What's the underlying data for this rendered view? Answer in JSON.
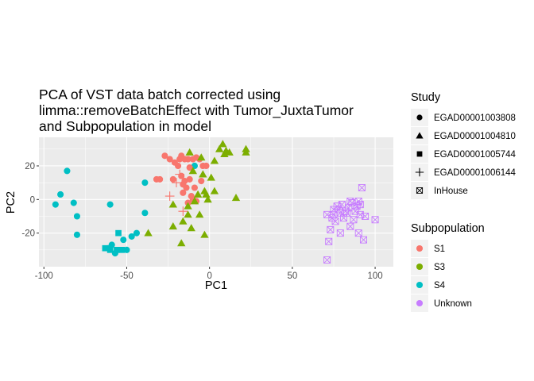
{
  "chart_data": {
    "type": "scatter",
    "title_lines": [
      "PCA of VST data batch corrected using",
      "limma::removeBatchEffect with Tumor_JuxtaTumor",
      "and Subpopulation in model"
    ],
    "xlabel": "PC1",
    "ylabel": "PC2",
    "xlim": [
      -103,
      111
    ],
    "ylim": [
      -40,
      37
    ],
    "xticks": [
      -100,
      -50,
      0,
      50,
      100
    ],
    "xtick_labels": [
      "-100",
      "-50",
      "0",
      "50",
      "100"
    ],
    "yticks": [
      -20,
      0,
      20
    ],
    "ytick_labels": [
      "-20",
      "0",
      "20"
    ],
    "grid": true,
    "background": "#ebebeb",
    "legend_placement": "right",
    "legends": [
      {
        "title": "Study",
        "items": [
          {
            "label": "EGAD00001003808",
            "shape": "circle"
          },
          {
            "label": "EGAD00001004810",
            "shape": "triangle"
          },
          {
            "label": "EGAD00001005744",
            "shape": "square"
          },
          {
            "label": "EGAD00001006144",
            "shape": "plus"
          },
          {
            "label": "InHouse",
            "shape": "boxx"
          }
        ]
      },
      {
        "title": "Subpopulation",
        "items": [
          {
            "label": "S1",
            "color": "#F8766D"
          },
          {
            "label": "S3",
            "color": "#7CAE00"
          },
          {
            "label": "S4",
            "color": "#00BFC4"
          },
          {
            "label": "Unknown",
            "color": "#C77CFF"
          }
        ]
      }
    ],
    "series": [
      {
        "subpopulation": "S4",
        "study": "EGAD00001003808",
        "shape": "circle",
        "color": "#00BFC4",
        "points": [
          [
            -93,
            -3
          ],
          [
            -90,
            3
          ],
          [
            -86,
            17
          ],
          [
            -82,
            -2
          ],
          [
            -80,
            -10
          ],
          [
            -80,
            -21
          ],
          [
            -60,
            -3
          ],
          [
            -59,
            -27
          ],
          [
            -57,
            -32
          ],
          [
            -52,
            -24
          ],
          [
            -50,
            -30
          ],
          [
            -47,
            -22
          ],
          [
            -44,
            -20
          ],
          [
            -39,
            10
          ],
          [
            -39,
            -8
          ],
          [
            -9,
            20
          ]
        ]
      },
      {
        "subpopulation": "S4",
        "study": "EGAD00001005744",
        "shape": "square",
        "color": "#00BFC4",
        "points": [
          [
            -63,
            -29
          ],
          [
            -60,
            -29
          ],
          [
            -60,
            -30
          ],
          [
            -56,
            -30
          ],
          [
            -55,
            -20
          ],
          [
            -53,
            -30
          ]
        ]
      },
      {
        "subpopulation": "S1",
        "study": "EGAD00001003808",
        "shape": "circle",
        "color": "#F8766D",
        "points": [
          [
            -32,
            12
          ],
          [
            -30,
            12
          ],
          [
            -27,
            26
          ],
          [
            -24,
            24
          ],
          [
            -22,
            12
          ],
          [
            -21,
            22
          ],
          [
            -19,
            20
          ],
          [
            -18,
            24
          ],
          [
            -17,
            26
          ],
          [
            -17,
            14
          ],
          [
            -16,
            9
          ],
          [
            -16,
            4
          ],
          [
            -15,
            24
          ],
          [
            -15,
            11
          ],
          [
            -14,
            7
          ],
          [
            -13,
            24
          ],
          [
            -13,
            -2
          ],
          [
            -12,
            19
          ],
          [
            -12,
            12
          ],
          [
            -11,
            2
          ],
          [
            -10,
            24
          ],
          [
            -10,
            0
          ],
          [
            -9,
            7
          ],
          [
            -8,
            25
          ],
          [
            -8,
            -1
          ],
          [
            -6,
            24
          ],
          [
            -5,
            11
          ],
          [
            -4,
            20
          ],
          [
            -2,
            20
          ]
        ]
      },
      {
        "subpopulation": "S1",
        "study": "EGAD00001006144",
        "shape": "plus",
        "color": "#F8766D",
        "points": [
          [
            -24,
            2
          ],
          [
            -20,
            10
          ],
          [
            -18,
            15
          ],
          [
            -16,
            -7
          ]
        ]
      },
      {
        "subpopulation": "S3",
        "study": "EGAD00001004810",
        "shape": "triangle",
        "color": "#7CAE00",
        "points": [
          [
            -37,
            -20
          ],
          [
            -22,
            -16
          ],
          [
            -22,
            -3
          ],
          [
            -17,
            -26
          ],
          [
            -16,
            -13
          ],
          [
            -13,
            -9
          ],
          [
            -13,
            -4
          ],
          [
            -12,
            28
          ],
          [
            -11,
            -17
          ],
          [
            -10,
            17
          ],
          [
            -9,
            -1
          ],
          [
            -7,
            3
          ],
          [
            -6,
            -9
          ],
          [
            -5,
            25
          ],
          [
            -4,
            15
          ],
          [
            -3,
            5
          ],
          [
            -3,
            -21
          ],
          [
            -2,
            3
          ],
          [
            -1,
            0
          ],
          [
            1,
            13
          ],
          [
            3,
            23
          ],
          [
            3,
            5
          ],
          [
            6,
            30
          ],
          [
            8,
            33
          ],
          [
            9,
            27
          ],
          [
            10,
            29
          ],
          [
            12,
            28
          ],
          [
            16,
            1
          ],
          [
            22,
            30
          ],
          [
            22,
            28
          ]
        ]
      },
      {
        "subpopulation": "Unknown",
        "study": "InHouse",
        "shape": "boxx",
        "color": "#C77CFF",
        "points": [
          [
            71,
            -36
          ],
          [
            71,
            -9
          ],
          [
            72,
            -25
          ],
          [
            73,
            -18
          ],
          [
            74,
            -11
          ],
          [
            75,
            -6
          ],
          [
            75,
            -9
          ],
          [
            76,
            -13
          ],
          [
            77,
            -4
          ],
          [
            78,
            -6
          ],
          [
            79,
            -20
          ],
          [
            79,
            -8
          ],
          [
            80,
            -3
          ],
          [
            81,
            -11
          ],
          [
            82,
            -7
          ],
          [
            83,
            -8
          ],
          [
            84,
            -5
          ],
          [
            85,
            -1
          ],
          [
            85,
            -16
          ],
          [
            86,
            -2
          ],
          [
            87,
            -12
          ],
          [
            88,
            -7
          ],
          [
            89,
            -4
          ],
          [
            90,
            -1
          ],
          [
            90,
            -20
          ],
          [
            91,
            -3
          ],
          [
            91,
            -9
          ],
          [
            92,
            7
          ],
          [
            93,
            -24
          ],
          [
            94,
            -10
          ],
          [
            100,
            -12
          ]
        ]
      }
    ]
  }
}
